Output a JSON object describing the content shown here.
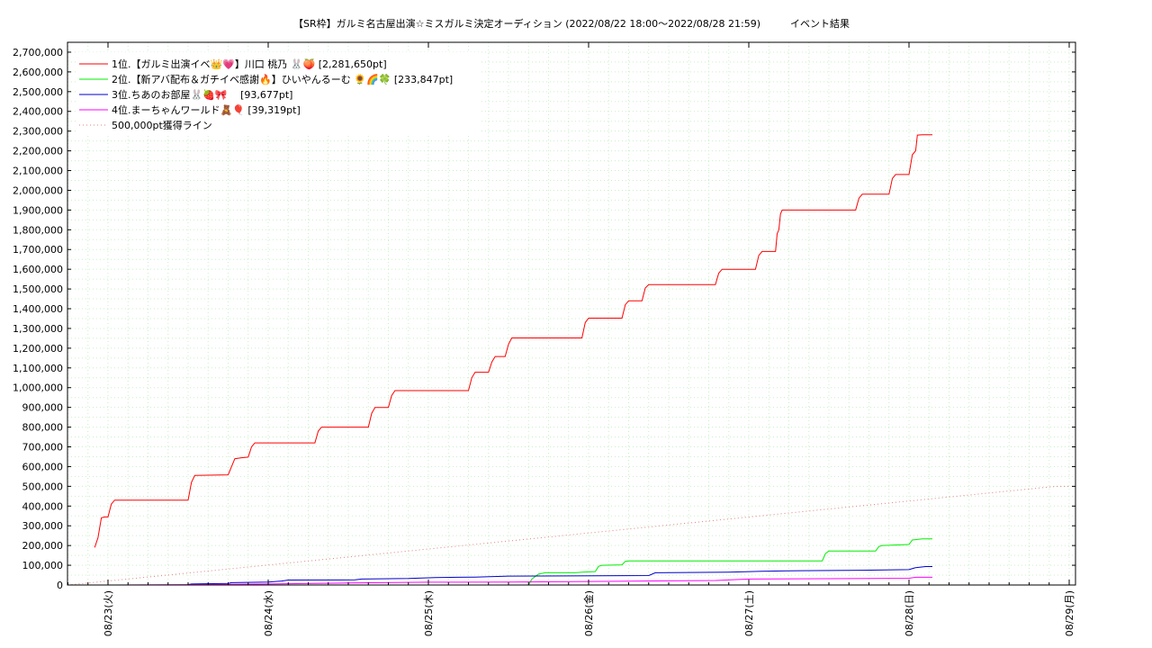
{
  "chart_data": {
    "type": "line",
    "title": "【SR枠】ガルミ名古屋出演☆ミスガルミ決定オーディション (2022/08/22 18:00〜2022/08/28 21:59)　　　イベント結果",
    "xlabel": "",
    "ylabel": "",
    "x_range": [
      "2022/08/22 18:00",
      "2022/08/28 21:59"
    ],
    "ylim": [
      0,
      2750000
    ],
    "y_ticks": [
      0,
      100000,
      200000,
      300000,
      400000,
      500000,
      600000,
      700000,
      800000,
      900000,
      1000000,
      1100000,
      1200000,
      1300000,
      1400000,
      1500000,
      1600000,
      1700000,
      1800000,
      1900000,
      2000000,
      2100000,
      2200000,
      2300000,
      2400000,
      2500000,
      2600000,
      2700000
    ],
    "y_tick_labels": [
      "0",
      "100,000",
      "200,000",
      "300,000",
      "400,000",
      "500,000",
      "600,000",
      "700,000",
      "800,000",
      "900,000",
      "1,000,000",
      "1,100,000",
      "1,200,000",
      "1,300,000",
      "1,400,000",
      "1,500,000",
      "1,600,000",
      "1,700,000",
      "1,800,000",
      "1,900,000",
      "2,000,000",
      "2,100,000",
      "2,200,000",
      "2,300,000",
      "2,400,000",
      "2,500,000",
      "2,600,000",
      "2,700,000"
    ],
    "x_ticks": [
      "08/23(火)",
      "08/24(水)",
      "08/25(木)",
      "08/26(金)",
      "08/27(土)",
      "08/28(日)",
      "08/29(月)"
    ],
    "x_tick_times": [
      "2022/08/23 00:00",
      "2022/08/24 00:00",
      "2022/08/25 00:00",
      "2022/08/26 00:00",
      "2022/08/27 00:00",
      "2022/08/28 00:00",
      "2022/08/29 00:00"
    ],
    "grid": true,
    "legend_position": "top-left",
    "series": [
      {
        "name": "1位.【ガルミ出演イベ👑💗】川口 桃乃 🐰🍑 [2,281,650pt]",
        "color": "#ff0000",
        "points": [
          [
            "2022/08/22 22:00",
            190000
          ],
          [
            "2022/08/22 22:30",
            240000
          ],
          [
            "2022/08/22 23:00",
            340000
          ],
          [
            "2022/08/22 23:30",
            345000
          ],
          [
            "2022/08/23 00:00",
            345000
          ],
          [
            "2022/08/23 00:30",
            410000
          ],
          [
            "2022/08/23 01:00",
            430000
          ],
          [
            "2022/08/23 05:00",
            430000
          ],
          [
            "2022/08/23 12:00",
            430000
          ],
          [
            "2022/08/23 12:30",
            520000
          ],
          [
            "2022/08/23 13:00",
            555000
          ],
          [
            "2022/08/23 18:00",
            558000
          ],
          [
            "2022/08/23 19:00",
            640000
          ],
          [
            "2022/08/23 20:00",
            645000
          ],
          [
            "2022/08/23 21:00",
            648000
          ],
          [
            "2022/08/23 21:30",
            700000
          ],
          [
            "2022/08/23 22:00",
            720000
          ],
          [
            "2022/08/24 07:00",
            720000
          ],
          [
            "2022/08/24 07:30",
            780000
          ],
          [
            "2022/08/24 08:00",
            800000
          ],
          [
            "2022/08/24 15:00",
            800000
          ],
          [
            "2022/08/24 15:30",
            870000
          ],
          [
            "2022/08/24 16:00",
            900000
          ],
          [
            "2022/08/24 18:00",
            900000
          ],
          [
            "2022/08/24 18:30",
            960000
          ],
          [
            "2022/08/24 19:00",
            985000
          ],
          [
            "2022/08/25 06:00",
            985000
          ],
          [
            "2022/08/25 06:30",
            1050000
          ],
          [
            "2022/08/25 07:00",
            1078000
          ],
          [
            "2022/08/25 09:00",
            1078000
          ],
          [
            "2022/08/25 09:30",
            1130000
          ],
          [
            "2022/08/25 10:00",
            1158000
          ],
          [
            "2022/08/25 11:30",
            1158000
          ],
          [
            "2022/08/25 12:00",
            1220000
          ],
          [
            "2022/08/25 12:30",
            1252000
          ],
          [
            "2022/08/25 23:00",
            1252000
          ],
          [
            "2022/08/25 23:30",
            1330000
          ],
          [
            "2022/08/26 00:00",
            1352000
          ],
          [
            "2022/08/26 05:00",
            1352000
          ],
          [
            "2022/08/26 05:30",
            1420000
          ],
          [
            "2022/08/26 06:00",
            1440000
          ],
          [
            "2022/08/26 08:00",
            1440000
          ],
          [
            "2022/08/26 08:30",
            1505000
          ],
          [
            "2022/08/26 09:00",
            1522000
          ],
          [
            "2022/08/26 19:00",
            1522000
          ],
          [
            "2022/08/26 19:30",
            1580000
          ],
          [
            "2022/08/26 20:00",
            1600000
          ],
          [
            "2022/08/27 01:00",
            1600000
          ],
          [
            "2022/08/27 01:30",
            1670000
          ],
          [
            "2022/08/27 02:00",
            1690000
          ],
          [
            "2022/08/27 04:00",
            1690000
          ],
          [
            "2022/08/27 04:15",
            1780000
          ],
          [
            "2022/08/27 04:30",
            1800000
          ],
          [
            "2022/08/27 04:45",
            1880000
          ],
          [
            "2022/08/27 05:00",
            1900000
          ],
          [
            "2022/08/27 16:00",
            1900000
          ],
          [
            "2022/08/27 16:30",
            1960000
          ],
          [
            "2022/08/27 17:00",
            1980000
          ],
          [
            "2022/08/27 21:00",
            1980000
          ],
          [
            "2022/08/27 21:30",
            2060000
          ],
          [
            "2022/08/27 22:00",
            2080000
          ],
          [
            "2022/08/28 00:00",
            2080000
          ],
          [
            "2022/08/28 00:30",
            2180000
          ],
          [
            "2022/08/28 01:00",
            2200000
          ],
          [
            "2022/08/28 01:15",
            2280000
          ],
          [
            "2022/08/28 02:00",
            2281650
          ],
          [
            "2022/08/28 03:30",
            2281650
          ]
        ]
      },
      {
        "name": "2位.【新アバ配布＆ガチイベ感謝🔥】ひいやんるーむ 🌻🌈🍀 [233,847pt]",
        "color": "#00ee00",
        "points": [
          [
            "2022/08/25 15:00",
            0
          ],
          [
            "2022/08/25 15:30",
            30000
          ],
          [
            "2022/08/25 16:30",
            55000
          ],
          [
            "2022/08/25 17:30",
            62000
          ],
          [
            "2022/08/25 22:00",
            62000
          ],
          [
            "2022/08/25 23:00",
            65000
          ],
          [
            "2022/08/26 01:00",
            68000
          ],
          [
            "2022/08/26 01:30",
            95000
          ],
          [
            "2022/08/26 02:00",
            100000
          ],
          [
            "2022/08/26 05:00",
            102000
          ],
          [
            "2022/08/26 05:30",
            120000
          ],
          [
            "2022/08/26 06:00",
            122000
          ],
          [
            "2022/08/27 11:00",
            122000
          ],
          [
            "2022/08/27 11:30",
            160000
          ],
          [
            "2022/08/27 12:00",
            172000
          ],
          [
            "2022/08/27 19:00",
            172000
          ],
          [
            "2022/08/27 19:30",
            195000
          ],
          [
            "2022/08/27 20:00",
            200000
          ],
          [
            "2022/08/28 00:00",
            205000
          ],
          [
            "2022/08/28 00:30",
            228000
          ],
          [
            "2022/08/28 02:00",
            233847
          ],
          [
            "2022/08/28 03:30",
            233847
          ]
        ]
      },
      {
        "name": "3位.ちあのお部屋🐰🍓🎀　 [93,677pt]",
        "color": "#0000cc",
        "points": [
          [
            "2022/08/23 12:00",
            2000
          ],
          [
            "2022/08/23 12:30",
            5000
          ],
          [
            "2022/08/23 18:00",
            8000
          ],
          [
            "2022/08/23 18:30",
            12000
          ],
          [
            "2022/08/24 00:00",
            15000
          ],
          [
            "2022/08/24 02:00",
            20000
          ],
          [
            "2022/08/24 03:00",
            25000
          ],
          [
            "2022/08/24 13:00",
            26000
          ],
          [
            "2022/08/24 14:00",
            30000
          ],
          [
            "2022/08/24 21:00",
            33000
          ],
          [
            "2022/08/25 01:00",
            38000
          ],
          [
            "2022/08/25 07:00",
            40000
          ],
          [
            "2022/08/25 12:00",
            45000
          ],
          [
            "2022/08/26 09:00",
            48000
          ],
          [
            "2022/08/26 10:00",
            62000
          ],
          [
            "2022/08/26 21:00",
            65000
          ],
          [
            "2022/08/27 02:00",
            70000
          ],
          [
            "2022/08/27 06:00",
            72000
          ],
          [
            "2022/08/27 17:00",
            75000
          ],
          [
            "2022/08/28 00:00",
            78000
          ],
          [
            "2022/08/28 01:00",
            88000
          ],
          [
            "2022/08/28 02:30",
            93677
          ],
          [
            "2022/08/28 03:30",
            93677
          ]
        ]
      },
      {
        "name": "4位.まーちゃんワールド🧸🎈 [39,319pt]",
        "color": "#ff00ff",
        "points": [
          [
            "2022/08/23 00:00",
            0
          ],
          [
            "2022/08/23 12:00",
            2000
          ],
          [
            "2022/08/24 00:00",
            5000
          ],
          [
            "2022/08/24 12:00",
            10000
          ],
          [
            "2022/08/25 00:00",
            14000
          ],
          [
            "2022/08/25 12:00",
            15000
          ],
          [
            "2022/08/26 00:00",
            18000
          ],
          [
            "2022/08/26 12:00",
            21000
          ],
          [
            "2022/08/26 19:00",
            23000
          ],
          [
            "2022/08/27 00:00",
            30000
          ],
          [
            "2022/08/27 12:00",
            32000
          ],
          [
            "2022/08/28 00:00",
            34000
          ],
          [
            "2022/08/28 01:00",
            39319
          ],
          [
            "2022/08/28 03:30",
            39319
          ]
        ]
      },
      {
        "name": "500,000pt獲得ライン",
        "color": "#e08080",
        "dashed": true,
        "points": [
          [
            "2022/08/22 18:00",
            0
          ],
          [
            "2022/08/28 21:59",
            500000
          ],
          [
            "2022/08/29 00:00",
            500000
          ]
        ]
      }
    ]
  }
}
